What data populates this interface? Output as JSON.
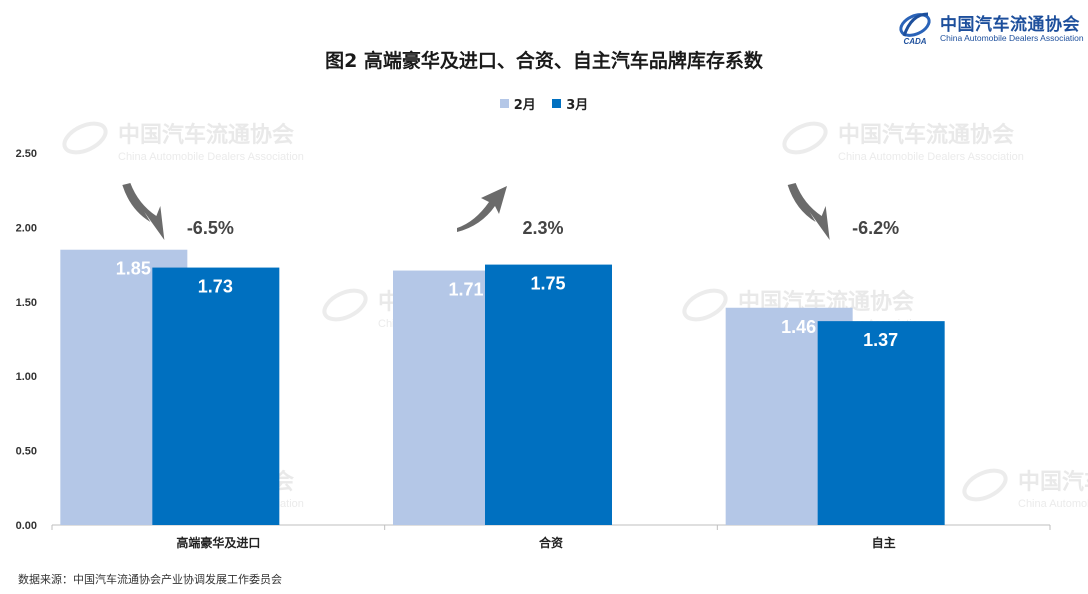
{
  "header": {
    "logo_cn": "中国汽车流通协会",
    "logo_en": "China Automobile Dealers Association",
    "logo_mark_text": "CADA"
  },
  "title": "图2  高端豪华及进口、合资、自主汽车品牌库存系数",
  "legend": [
    {
      "label": "2月",
      "color": "#b4c7e7"
    },
    {
      "label": "3月",
      "color": "#0070c0"
    }
  ],
  "watermark": {
    "cn": "中国汽车流通协会",
    "en": "China Automobile Dealers Association"
  },
  "source": "数据来源：中国汽车流通协会产业协调发展工作委员会",
  "chart_data": {
    "type": "bar",
    "categories": [
      "高端豪华及进口",
      "合资",
      "自主"
    ],
    "series": [
      {
        "name": "2月",
        "values": [
          1.85,
          1.71,
          1.46
        ],
        "color": "#b4c7e7"
      },
      {
        "name": "3月",
        "values": [
          1.73,
          1.75,
          1.37
        ],
        "color": "#0070c0"
      }
    ],
    "data_labels": [
      [
        "1.85",
        "1.71",
        "1.46"
      ],
      [
        "1.73",
        "1.75",
        "1.37"
      ]
    ],
    "changes": [
      {
        "label": "-6.5%",
        "direction": "down"
      },
      {
        "label": "2.3%",
        "direction": "up"
      },
      {
        "label": "-6.2%",
        "direction": "down"
      }
    ],
    "ylim": [
      0,
      2.5
    ],
    "yticks": [
      "0.00",
      "0.50",
      "1.00",
      "1.50",
      "2.00",
      "2.50"
    ],
    "ytick_values": [
      0,
      0.5,
      1.0,
      1.5,
      2.0,
      2.5
    ],
    "grid": false,
    "legend_position": "top",
    "xlabel": "",
    "ylabel": ""
  }
}
